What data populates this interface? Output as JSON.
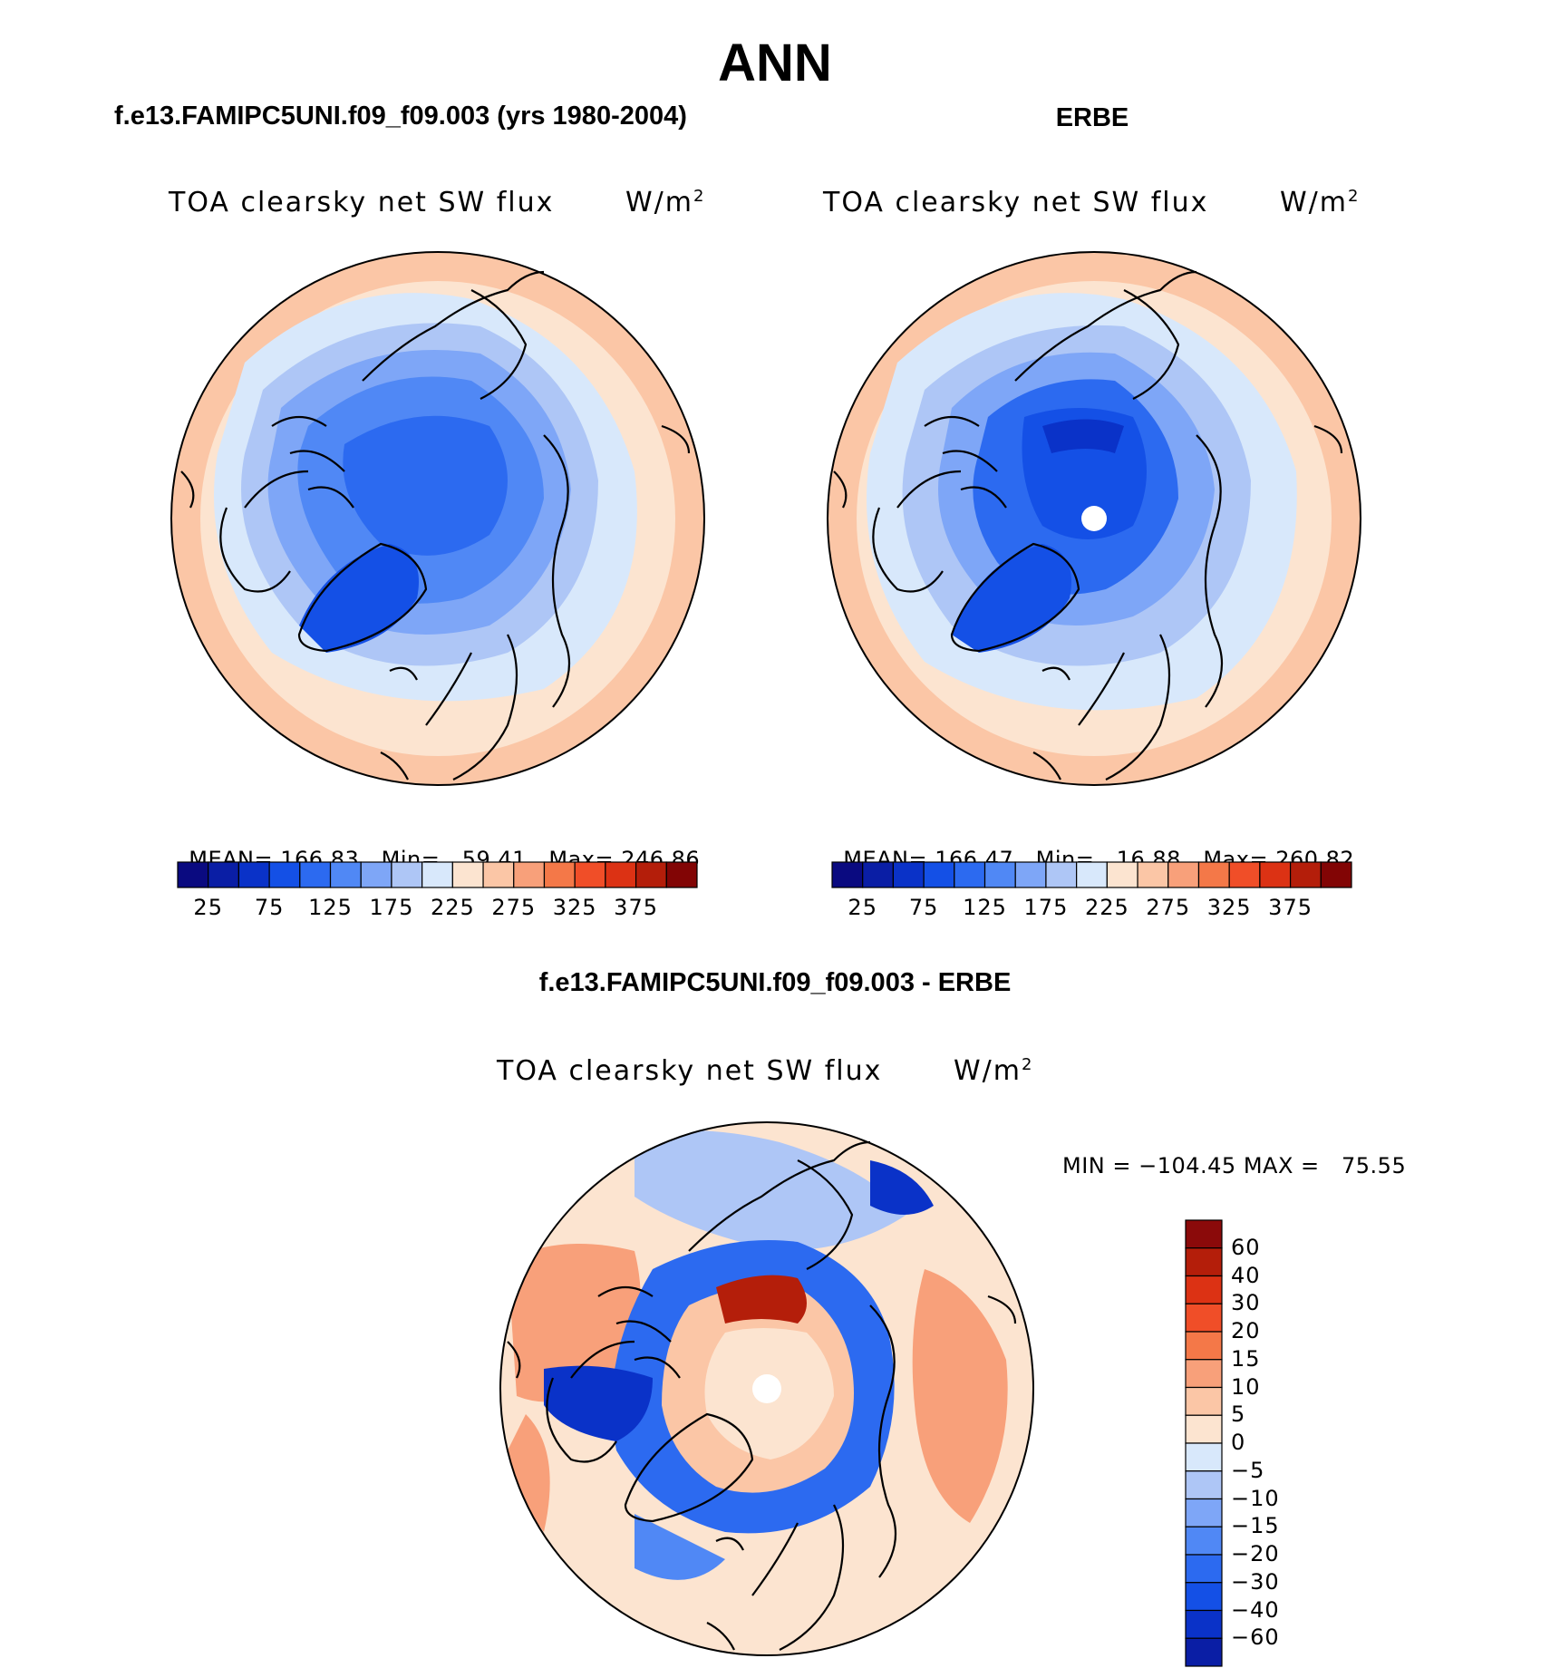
{
  "figure": {
    "title": "ANN",
    "variable": "TOA clearsky net SW flux",
    "units": "W/m",
    "units_exponent": "2"
  },
  "panels": [
    {
      "id": "model",
      "title": "f.e13.FAMIPC5UNI.f09_f09.003 (yrs 1980-2004)",
      "mean_label": "MEAN=",
      "mean": "166.83",
      "min_label": "Min=",
      "min": "59.41",
      "max_label": "Max=",
      "max": "246.86"
    },
    {
      "id": "obs",
      "title": "ERBE",
      "mean_label": "MEAN=",
      "mean": "166.47",
      "min_label": "Min=",
      "min": "16.88",
      "max_label": "Max=",
      "max": "260.82"
    }
  ],
  "difference": {
    "title": "f.e13.FAMIPC5UNI.f09_f09.003 - ERBE",
    "minmax_text": "MIN = −104.45 MAX =   75.55",
    "min": -104.45,
    "max": 75.55
  },
  "colorbar": {
    "ticks": [
      "25",
      "75",
      "125",
      "175",
      "225",
      "275",
      "325",
      "375"
    ],
    "colors": [
      "#0a0a80",
      "#0a1ea5",
      "#0a32c8",
      "#1450e6",
      "#2c6af0",
      "#5088f5",
      "#7ea6f7",
      "#aec6f6",
      "#d8e8fb",
      "#fce4d0",
      "#fbc6a6",
      "#f8a07a",
      "#f47848",
      "#f04e28",
      "#dc3214",
      "#b41e0a",
      "#820505"
    ]
  },
  "diff_colorbar": {
    "ticks": [
      "60",
      "40",
      "30",
      "20",
      "15",
      "10",
      "5",
      "0",
      "−5",
      "−10",
      "−15",
      "−20",
      "−30",
      "−40",
      "−60"
    ],
    "colors": [
      "#8b0a0a",
      "#b41e0a",
      "#dc3214",
      "#f04e28",
      "#f47848",
      "#f8a07a",
      "#fbc6a6",
      "#fce4d0",
      "#d8e8fb",
      "#aec6f6",
      "#7ea6f7",
      "#5088f5",
      "#2c6af0",
      "#1450e6",
      "#0a32c8",
      "#0a1ea5"
    ]
  },
  "chart_data": [
    {
      "type": "heatmap",
      "title": "f.e13.FAMIPC5UNI.f09_f09.003 (yrs 1980-2004)",
      "projection": "north polar stereographic",
      "variable": "TOA clearsky net SW flux",
      "units": "W/m2",
      "mean": 166.83,
      "min": 59.41,
      "max": 246.86,
      "levels": [
        25,
        50,
        75,
        100,
        125,
        150,
        175,
        200,
        225,
        250,
        275,
        300,
        325,
        350,
        375,
        400
      ]
    },
    {
      "type": "heatmap",
      "title": "ERBE",
      "projection": "north polar stereographic",
      "variable": "TOA clearsky net SW flux",
      "units": "W/m2",
      "mean": 166.47,
      "min": 16.88,
      "max": 260.82,
      "levels": [
        25,
        50,
        75,
        100,
        125,
        150,
        175,
        200,
        225,
        250,
        275,
        300,
        325,
        350,
        375,
        400
      ]
    },
    {
      "type": "heatmap",
      "title": "f.e13.FAMIPC5UNI.f09_f09.003 - ERBE",
      "projection": "north polar stereographic",
      "variable": "TOA clearsky net SW flux",
      "units": "W/m2",
      "min": -104.45,
      "max": 75.55,
      "levels": [
        -60,
        -40,
        -30,
        -20,
        -15,
        -10,
        -5,
        0,
        5,
        10,
        15,
        20,
        30,
        40,
        60
      ]
    }
  ]
}
